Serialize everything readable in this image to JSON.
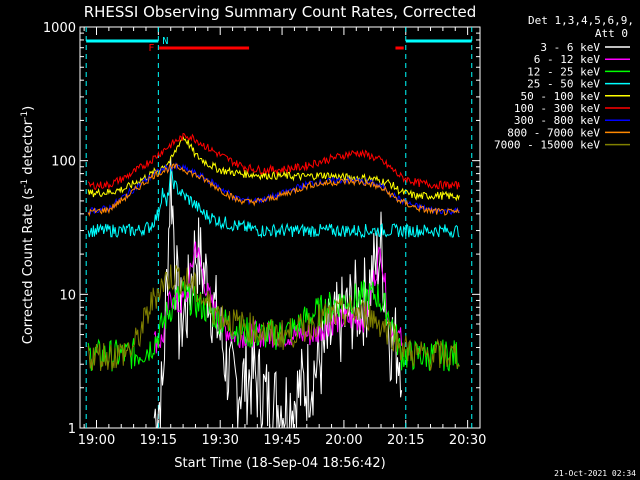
{
  "chart_data": {
    "type": "line",
    "title": "RHESSI Observing Summary Count Rates, Corrected",
    "xlabel": "Start Time (18-Sep-04 18:56:42)",
    "ylabel": "Corrected Count Rate (s",
    "ylabel_sup1": "-1",
    "ylabel_mid": " detector",
    "ylabel_sup2": "-1",
    "ylabel_end": ")",
    "yscale": "log",
    "ylim": [
      1,
      1000
    ],
    "xlim_minutes": [
      -3,
      38
    ],
    "x_ticks": [
      {
        "m": 0,
        "label": "19:00"
      },
      {
        "m": 15,
        "label": "19:15"
      },
      {
        "m": 30,
        "label": "19:30"
      },
      {
        "m": 45,
        "label": "19:45"
      },
      {
        "m": 60,
        "label": "20:00"
      },
      {
        "m": 75,
        "label": "20:15"
      },
      {
        "m": 90,
        "label": "20:30"
      }
    ],
    "y_ticks": [
      {
        "v": 1,
        "label": "1"
      },
      {
        "v": 10,
        "label": "10"
      },
      {
        "v": 100,
        "label": "100"
      },
      {
        "v": 1000,
        "label": "1000"
      }
    ],
    "detector_header": "Det 1,3,4,5,6,9,",
    "attenuator": "Att 0",
    "series": [
      {
        "name": "3 - 6 keV",
        "color": "#ffffff",
        "values": [
          [
            14,
            1.2
          ],
          [
            16,
            1.8
          ],
          [
            18,
            80
          ],
          [
            20,
            6
          ],
          [
            22,
            8
          ],
          [
            24,
            22
          ],
          [
            27,
            12
          ],
          [
            30,
            5
          ],
          [
            33,
            2
          ],
          [
            38,
            2.5
          ],
          [
            42,
            1.5
          ],
          [
            47,
            1.5
          ],
          [
            50,
            2
          ],
          [
            55,
            3.5
          ],
          [
            57,
            5
          ],
          [
            62,
            8
          ],
          [
            65,
            9
          ],
          [
            69,
            22
          ],
          [
            71,
            5
          ],
          [
            74,
            3.5
          ]
        ]
      },
      {
        "name": "6 - 12 keV",
        "color": "#ff00ff",
        "values": [
          [
            14,
            4.5
          ],
          [
            16,
            4.5
          ],
          [
            18,
            10
          ],
          [
            20,
            8
          ],
          [
            22,
            10
          ],
          [
            24,
            24
          ],
          [
            27,
            10
          ],
          [
            30,
            6
          ],
          [
            33,
            5
          ],
          [
            38,
            5
          ],
          [
            43,
            5
          ],
          [
            48,
            5
          ],
          [
            53,
            5
          ],
          [
            56,
            6
          ],
          [
            60,
            6.5
          ],
          [
            65,
            6.5
          ],
          [
            69,
            22
          ],
          [
            71,
            6
          ],
          [
            74,
            4.5
          ]
        ]
      },
      {
        "name": "12 - 25 keV",
        "color": "#00ff00",
        "values": [
          [
            -2,
            3.5
          ],
          [
            5,
            3.5
          ],
          [
            10,
            3.6
          ],
          [
            13,
            4
          ],
          [
            15,
            5
          ],
          [
            17,
            7
          ],
          [
            19,
            9
          ],
          [
            21,
            10
          ],
          [
            23,
            9
          ],
          [
            26,
            8
          ],
          [
            30,
            6.5
          ],
          [
            34,
            5.5
          ],
          [
            38,
            5
          ],
          [
            44,
            5
          ],
          [
            48,
            5.5
          ],
          [
            52,
            7
          ],
          [
            56,
            8
          ],
          [
            60,
            9
          ],
          [
            64,
            9.5
          ],
          [
            68,
            10
          ],
          [
            71,
            7
          ],
          [
            74,
            3.5
          ],
          [
            80,
            3.5
          ],
          [
            88,
            3.5
          ]
        ]
      },
      {
        "name": "25 - 50 keV",
        "color": "#00ffff",
        "values": [
          [
            -2,
            30
          ],
          [
            5,
            30
          ],
          [
            10,
            30
          ],
          [
            13,
            32
          ],
          [
            15,
            40
          ],
          [
            16,
            60
          ],
          [
            17,
            45
          ],
          [
            18,
            80
          ],
          [
            19,
            65
          ],
          [
            21,
            55
          ],
          [
            23,
            50
          ],
          [
            26,
            40
          ],
          [
            30,
            35
          ],
          [
            35,
            32
          ],
          [
            40,
            30
          ],
          [
            50,
            30
          ],
          [
            60,
            30
          ],
          [
            70,
            30
          ],
          [
            80,
            30
          ],
          [
            88,
            30
          ]
        ]
      },
      {
        "name": "50 - 100 keV",
        "color": "#ffff00",
        "values": [
          [
            -2,
            57
          ],
          [
            3,
            58
          ],
          [
            7,
            62
          ],
          [
            10,
            70
          ],
          [
            13,
            78
          ],
          [
            16,
            90
          ],
          [
            18,
            100
          ],
          [
            19,
            115
          ],
          [
            20,
            135
          ],
          [
            21,
            150
          ],
          [
            22,
            140
          ],
          [
            24,
            110
          ],
          [
            27,
            95
          ],
          [
            30,
            85
          ],
          [
            35,
            80
          ],
          [
            40,
            78
          ],
          [
            45,
            77
          ],
          [
            50,
            76
          ],
          [
            55,
            78
          ],
          [
            60,
            75
          ],
          [
            65,
            74
          ],
          [
            68,
            72
          ],
          [
            71,
            68
          ],
          [
            74,
            58
          ],
          [
            78,
            54
          ],
          [
            82,
            55
          ],
          [
            88,
            54
          ]
        ]
      },
      {
        "name": "100 - 300 keV",
        "color": "#ff0000",
        "values": [
          [
            -2,
            65
          ],
          [
            3,
            66
          ],
          [
            7,
            75
          ],
          [
            11,
            90
          ],
          [
            14,
            105
          ],
          [
            17,
            125
          ],
          [
            20,
            145
          ],
          [
            22,
            155
          ],
          [
            24,
            145
          ],
          [
            27,
            125
          ],
          [
            30,
            110
          ],
          [
            34,
            95
          ],
          [
            37,
            88
          ],
          [
            40,
            85
          ],
          [
            45,
            86
          ],
          [
            50,
            90
          ],
          [
            55,
            100
          ],
          [
            60,
            110
          ],
          [
            63,
            115
          ],
          [
            66,
            110
          ],
          [
            69,
            100
          ],
          [
            71,
            90
          ],
          [
            74,
            75
          ],
          [
            78,
            68
          ],
          [
            82,
            66
          ],
          [
            88,
            65
          ]
        ]
      },
      {
        "name": "300 - 800 keV",
        "color": "#0000ff",
        "values": [
          [
            -2,
            42
          ],
          [
            3,
            44
          ],
          [
            7,
            55
          ],
          [
            11,
            68
          ],
          [
            14,
            80
          ],
          [
            17,
            88
          ],
          [
            19,
            90
          ],
          [
            21,
            88
          ],
          [
            24,
            80
          ],
          [
            27,
            72
          ],
          [
            31,
            60
          ],
          [
            34,
            52
          ],
          [
            37,
            50
          ],
          [
            40,
            51
          ],
          [
            44,
            55
          ],
          [
            48,
            62
          ],
          [
            52,
            68
          ],
          [
            56,
            70
          ],
          [
            60,
            72
          ],
          [
            64,
            70
          ],
          [
            67,
            68
          ],
          [
            70,
            62
          ],
          [
            73,
            52
          ],
          [
            77,
            46
          ],
          [
            81,
            43
          ],
          [
            85,
            42
          ],
          [
            88,
            42
          ]
        ]
      },
      {
        "name": "800 - 7000 keV",
        "color": "#ff8800",
        "values": [
          [
            -2,
            41
          ],
          [
            3,
            43
          ],
          [
            7,
            53
          ],
          [
            11,
            66
          ],
          [
            14,
            78
          ],
          [
            17,
            86
          ],
          [
            19,
            90
          ],
          [
            21,
            87
          ],
          [
            24,
            78
          ],
          [
            27,
            70
          ],
          [
            31,
            58
          ],
          [
            34,
            51
          ],
          [
            37,
            49
          ],
          [
            40,
            50
          ],
          [
            44,
            54
          ],
          [
            48,
            60
          ],
          [
            52,
            66
          ],
          [
            56,
            68
          ],
          [
            60,
            70
          ],
          [
            64,
            69
          ],
          [
            67,
            66
          ],
          [
            70,
            60
          ],
          [
            73,
            51
          ],
          [
            77,
            45
          ],
          [
            81,
            42
          ],
          [
            85,
            41
          ],
          [
            88,
            41
          ]
        ]
      },
      {
        "name": "7000 - 15000 keV",
        "color": "#808000",
        "values": [
          [
            -2,
            3.5
          ],
          [
            5,
            3.5
          ],
          [
            9,
            4
          ],
          [
            11,
            5.5
          ],
          [
            13,
            8
          ],
          [
            15,
            11
          ],
          [
            17,
            13
          ],
          [
            19,
            14
          ],
          [
            21,
            13
          ],
          [
            23,
            12
          ],
          [
            26,
            9
          ],
          [
            30,
            7
          ],
          [
            34,
            6
          ],
          [
            38,
            5.5
          ],
          [
            42,
            5
          ],
          [
            46,
            5
          ],
          [
            50,
            5.5
          ],
          [
            54,
            6.5
          ],
          [
            58,
            7
          ],
          [
            62,
            7.5
          ],
          [
            66,
            7
          ],
          [
            69,
            6
          ],
          [
            72,
            5
          ],
          [
            74,
            4
          ],
          [
            78,
            3.5
          ],
          [
            84,
            3.5
          ],
          [
            88,
            3.5
          ]
        ]
      }
    ],
    "flags": [
      {
        "label": "N",
        "color": "#00ffff",
        "from": -2.5,
        "to": 15
      },
      {
        "label": "N",
        "color": "#00ffff",
        "from": 75,
        "to": 91
      },
      {
        "label": "F",
        "color": "#ff0000",
        "from": 15.2,
        "to": 37
      },
      {
        "label": "F",
        "color": "#ff0000",
        "from": 72.5,
        "to": 74.5
      }
    ],
    "flag_text": {
      "n": "N",
      "f": "F"
    },
    "vertical_markers": [
      -2.5,
      15,
      75,
      91
    ]
  },
  "footer_date": "21-Oct-2021 02:34"
}
